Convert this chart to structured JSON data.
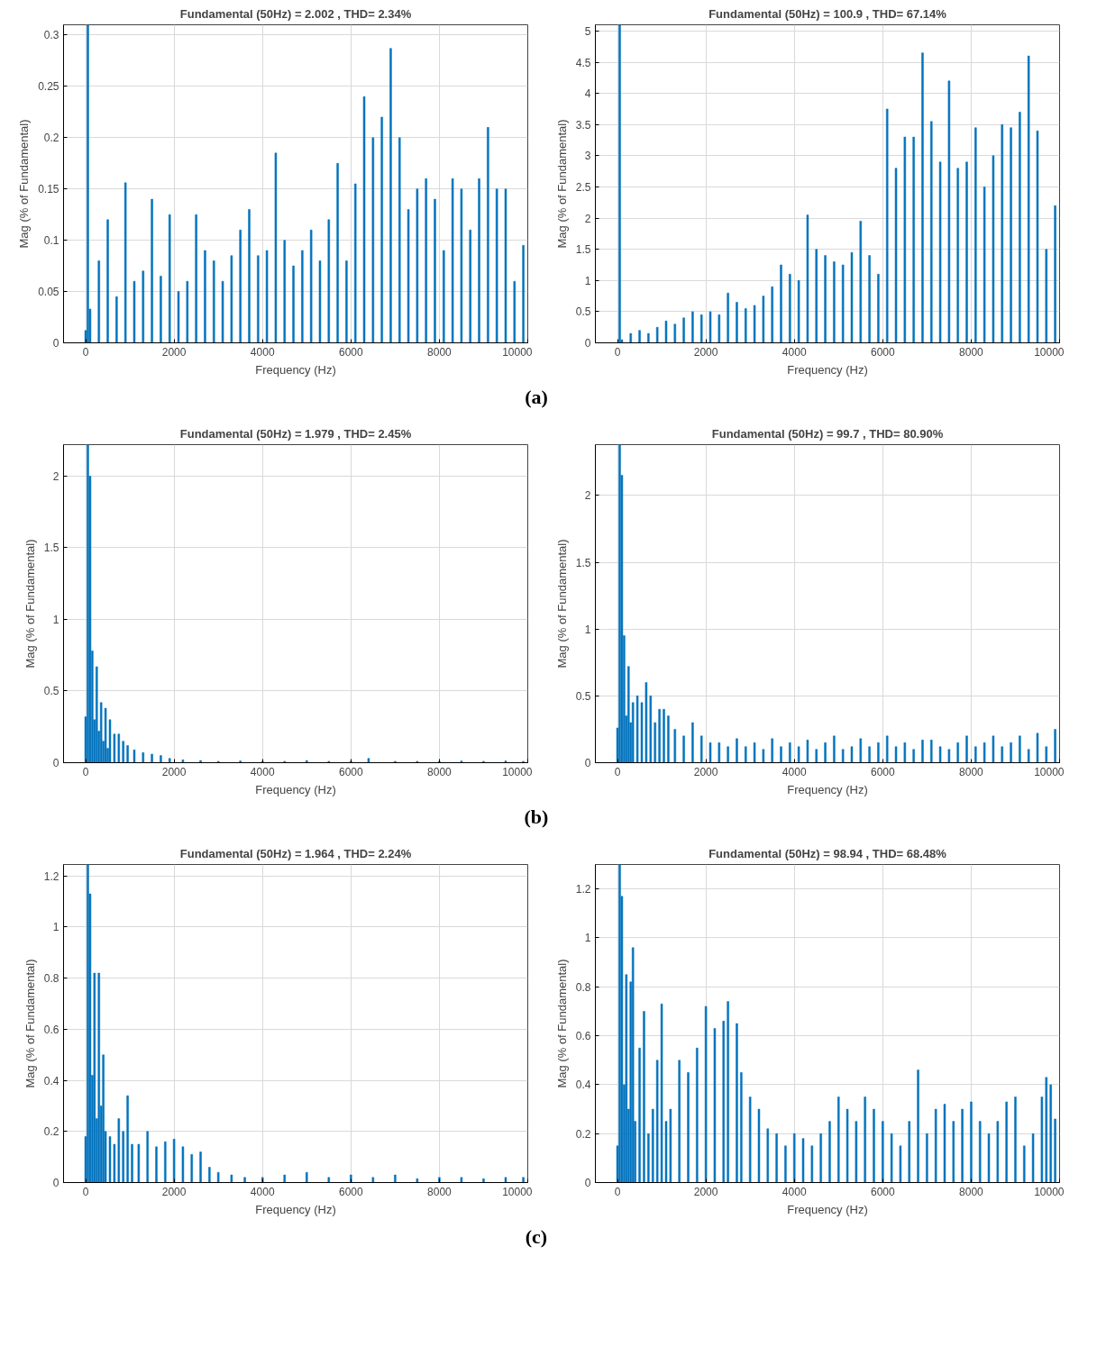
{
  "chart_data": [
    {
      "type": "bar",
      "title": "Fundamental (50Hz) = 2.002 , THD= 2.34%",
      "xlabel": "Frequency (Hz)",
      "ylabel": "Mag (% of Fundamental)",
      "annotations": [
        "(a)"
      ],
      "xlim": [
        -500,
        10000
      ],
      "xticks": [
        0,
        2000,
        4000,
        6000,
        8000,
        10000
      ],
      "ylim": [
        0,
        0.31
      ],
      "yticks": [
        0,
        0.05,
        0.1,
        0.15,
        0.2,
        0.25,
        0.3
      ],
      "grid": true,
      "series": [
        {
          "color": "#0072bd",
          "x": [
            0,
            50,
            100,
            300,
            500,
            700,
            900,
            1100,
            1300,
            1500,
            1700,
            1900,
            2100,
            2300,
            2500,
            2700,
            2900,
            3100,
            3300,
            3500,
            3700,
            3900,
            4100,
            4300,
            4500,
            4700,
            4900,
            5100,
            5300,
            5500,
            5700,
            5900,
            6100,
            6300,
            6500,
            6700,
            6900,
            7100,
            7300,
            7500,
            7700,
            7900,
            8100,
            8300,
            8500,
            8700,
            8900,
            9100,
            9300,
            9500,
            9700,
            9900
          ],
          "values": [
            0.012,
            0.31,
            0.033,
            0.08,
            0.12,
            0.045,
            0.156,
            0.06,
            0.07,
            0.14,
            0.065,
            0.125,
            0.05,
            0.06,
            0.125,
            0.09,
            0.08,
            0.06,
            0.085,
            0.11,
            0.13,
            0.085,
            0.09,
            0.185,
            0.1,
            0.075,
            0.09,
            0.11,
            0.08,
            0.12,
            0.175,
            0.08,
            0.155,
            0.24,
            0.2,
            0.22,
            0.287,
            0.2,
            0.13,
            0.15,
            0.16,
            0.14,
            0.09,
            0.16,
            0.15,
            0.11,
            0.16,
            0.21,
            0.15,
            0.15,
            0.06,
            0.095
          ]
        }
      ]
    },
    {
      "type": "bar",
      "title": "Fundamental (50Hz) = 100.9 , THD= 67.14%",
      "xlabel": "Frequency (Hz)",
      "ylabel": "Mag (% of Fundamental)",
      "xlim": [
        -500,
        10000
      ],
      "xticks": [
        0,
        2000,
        4000,
        6000,
        8000,
        10000
      ],
      "ylim": [
        0,
        5.1
      ],
      "yticks": [
        0,
        0.5,
        1,
        1.5,
        2,
        2.5,
        3,
        3.5,
        4,
        4.5,
        5
      ],
      "grid": true,
      "series": [
        {
          "color": "#0072bd",
          "x": [
            50,
            100,
            300,
            500,
            700,
            900,
            1100,
            1300,
            1500,
            1700,
            1900,
            2100,
            2300,
            2500,
            2700,
            2900,
            3100,
            3300,
            3500,
            3700,
            3900,
            4100,
            4300,
            4500,
            4700,
            4900,
            5100,
            5300,
            5500,
            5700,
            5900,
            6100,
            6300,
            6500,
            6700,
            6900,
            7100,
            7300,
            7500,
            7700,
            7900,
            8100,
            8300,
            8500,
            8700,
            8900,
            9100,
            9300,
            9500,
            9700,
            9900
          ],
          "values": [
            5.1,
            0.05,
            0.15,
            0.2,
            0.15,
            0.25,
            0.35,
            0.3,
            0.4,
            0.5,
            0.45,
            0.5,
            0.45,
            0.8,
            0.65,
            0.55,
            0.6,
            0.75,
            0.9,
            1.25,
            1.1,
            1.0,
            2.05,
            1.5,
            1.4,
            1.3,
            1.25,
            1.45,
            1.95,
            1.4,
            1.1,
            3.75,
            2.8,
            3.3,
            3.3,
            4.65,
            3.55,
            2.9,
            4.2,
            2.8,
            2.9,
            3.45,
            2.5,
            3.0,
            3.5,
            3.45,
            3.7,
            4.6,
            3.4,
            1.5,
            2.2
          ]
        }
      ]
    },
    {
      "type": "bar",
      "title": "Fundamental (50Hz) = 1.979 , THD= 2.45%",
      "xlabel": "Frequency (Hz)",
      "ylabel": "Mag (% of Fundamental)",
      "annotations": [
        "(b)"
      ],
      "xlim": [
        -500,
        10000
      ],
      "xticks": [
        0,
        2000,
        4000,
        6000,
        8000,
        10000
      ],
      "ylim": [
        0,
        2.22
      ],
      "yticks": [
        0,
        0.5,
        1,
        1.5,
        2
      ],
      "grid": true,
      "series": [
        {
          "color": "#0072bd",
          "x": [
            0,
            50,
            100,
            150,
            200,
            250,
            300,
            350,
            400,
            450,
            500,
            550,
            650,
            750,
            850,
            950,
            1100,
            1300,
            1500,
            1700,
            1900,
            2200,
            2600,
            3000,
            3500,
            4000,
            4500,
            5000,
            5500,
            6000,
            6400,
            7000,
            7500,
            8000,
            8500,
            9000,
            9500,
            9900
          ],
          "values": [
            0.32,
            2.22,
            2.0,
            0.78,
            0.3,
            0.67,
            0.22,
            0.42,
            0.15,
            0.38,
            0.1,
            0.3,
            0.2,
            0.2,
            0.15,
            0.12,
            0.09,
            0.07,
            0.06,
            0.05,
            0.03,
            0.02,
            0.015,
            0.01,
            0.012,
            0.01,
            0.01,
            0.015,
            0.01,
            0.01,
            0.03,
            0.01,
            0.01,
            0.01,
            0.012,
            0.01,
            0.012,
            0.01
          ]
        }
      ]
    },
    {
      "type": "bar",
      "title": "Fundamental (50Hz) = 99.7 , THD= 80.90%",
      "xlabel": "Frequency (Hz)",
      "ylabel": "Mag (% of Fundamental)",
      "xlim": [
        -500,
        10000
      ],
      "xticks": [
        0,
        2000,
        4000,
        6000,
        8000,
        10000
      ],
      "ylim": [
        0,
        2.38
      ],
      "yticks": [
        0,
        0.5,
        1,
        1.5,
        2
      ],
      "grid": true,
      "series": [
        {
          "color": "#0072bd",
          "x": [
            0,
            50,
            100,
            150,
            200,
            250,
            300,
            350,
            450,
            550,
            650,
            750,
            850,
            950,
            1050,
            1150,
            1300,
            1500,
            1700,
            1900,
            2100,
            2300,
            2500,
            2700,
            2900,
            3100,
            3300,
            3500,
            3700,
            3900,
            4100,
            4300,
            4500,
            4700,
            4900,
            5100,
            5300,
            5500,
            5700,
            5900,
            6100,
            6300,
            6500,
            6700,
            6900,
            7100,
            7300,
            7500,
            7700,
            7900,
            8100,
            8300,
            8500,
            8700,
            8900,
            9100,
            9300,
            9500,
            9700,
            9900
          ],
          "values": [
            0.26,
            2.38,
            2.15,
            0.95,
            0.35,
            0.72,
            0.3,
            0.45,
            0.5,
            0.45,
            0.6,
            0.5,
            0.3,
            0.4,
            0.4,
            0.35,
            0.25,
            0.2,
            0.3,
            0.2,
            0.15,
            0.15,
            0.12,
            0.18,
            0.12,
            0.15,
            0.1,
            0.18,
            0.12,
            0.15,
            0.12,
            0.17,
            0.1,
            0.15,
            0.2,
            0.1,
            0.12,
            0.18,
            0.12,
            0.15,
            0.2,
            0.12,
            0.15,
            0.1,
            0.17,
            0.17,
            0.12,
            0.1,
            0.15,
            0.2,
            0.12,
            0.15,
            0.2,
            0.12,
            0.15,
            0.2,
            0.1,
            0.22,
            0.12,
            0.25
          ]
        }
      ]
    },
    {
      "type": "bar",
      "title": "Fundamental (50Hz) = 1.964 , THD= 2.24%",
      "xlabel": "Frequency (Hz)",
      "ylabel": "Mag (% of Fundamental)",
      "annotations": [
        "(c)"
      ],
      "xlim": [
        -500,
        10000
      ],
      "xticks": [
        0,
        2000,
        4000,
        6000,
        8000,
        10000
      ],
      "ylim": [
        0,
        1.245
      ],
      "yticks": [
        0,
        0.2,
        0.4,
        0.6,
        0.8,
        1,
        1.2
      ],
      "grid": true,
      "series": [
        {
          "color": "#0072bd",
          "x": [
            0,
            50,
            100,
            150,
            200,
            250,
            300,
            350,
            400,
            450,
            550,
            650,
            750,
            850,
            950,
            1050,
            1200,
            1400,
            1600,
            1800,
            2000,
            2200,
            2400,
            2600,
            2800,
            3000,
            3300,
            3600,
            4000,
            4500,
            5000,
            5500,
            6000,
            6500,
            7000,
            7500,
            8000,
            8500,
            9000,
            9500,
            9900
          ],
          "values": [
            0.18,
            1.245,
            1.13,
            0.42,
            0.82,
            0.25,
            0.82,
            0.3,
            0.5,
            0.2,
            0.18,
            0.15,
            0.25,
            0.2,
            0.34,
            0.15,
            0.15,
            0.2,
            0.14,
            0.16,
            0.17,
            0.14,
            0.11,
            0.12,
            0.06,
            0.04,
            0.03,
            0.02,
            0.02,
            0.03,
            0.04,
            0.02,
            0.03,
            0.02,
            0.03,
            0.015,
            0.02,
            0.02,
            0.015,
            0.02,
            0.02
          ]
        }
      ]
    },
    {
      "type": "bar",
      "title": "Fundamental (50Hz) = 98.94 , THD= 68.48%",
      "xlabel": "Frequency (Hz)",
      "ylabel": "Mag (% of Fundamental)",
      "xlim": [
        -500,
        10000
      ],
      "xticks": [
        0,
        2000,
        4000,
        6000,
        8000,
        10000
      ],
      "ylim": [
        0,
        1.3
      ],
      "yticks": [
        0,
        0.2,
        0.4,
        0.6,
        0.8,
        1,
        1.2
      ],
      "grid": true,
      "series": [
        {
          "color": "#0072bd",
          "x": [
            0,
            50,
            100,
            150,
            200,
            250,
            300,
            350,
            400,
            500,
            600,
            700,
            800,
            900,
            1000,
            1100,
            1200,
            1400,
            1600,
            1800,
            2000,
            2200,
            2400,
            2500,
            2700,
            2800,
            3000,
            3200,
            3400,
            3600,
            3800,
            4000,
            4200,
            4400,
            4600,
            4800,
            5000,
            5200,
            5400,
            5600,
            5800,
            6000,
            6200,
            6400,
            6600,
            6800,
            7000,
            7200,
            7400,
            7600,
            7800,
            8000,
            8200,
            8400,
            8600,
            8800,
            9000,
            9200,
            9400,
            9600,
            9700,
            9800,
            9900
          ],
          "values": [
            0.15,
            1.3,
            1.17,
            0.4,
            0.85,
            0.3,
            0.82,
            0.96,
            0.25,
            0.55,
            0.7,
            0.2,
            0.3,
            0.5,
            0.73,
            0.25,
            0.3,
            0.5,
            0.45,
            0.55,
            0.72,
            0.63,
            0.66,
            0.74,
            0.65,
            0.45,
            0.35,
            0.3,
            0.22,
            0.2,
            0.15,
            0.2,
            0.18,
            0.15,
            0.2,
            0.25,
            0.35,
            0.3,
            0.25,
            0.35,
            0.3,
            0.25,
            0.2,
            0.15,
            0.25,
            0.46,
            0.2,
            0.3,
            0.32,
            0.25,
            0.3,
            0.33,
            0.25,
            0.2,
            0.25,
            0.33,
            0.35,
            0.15,
            0.2,
            0.35,
            0.43,
            0.4,
            0.26
          ]
        }
      ]
    }
  ]
}
